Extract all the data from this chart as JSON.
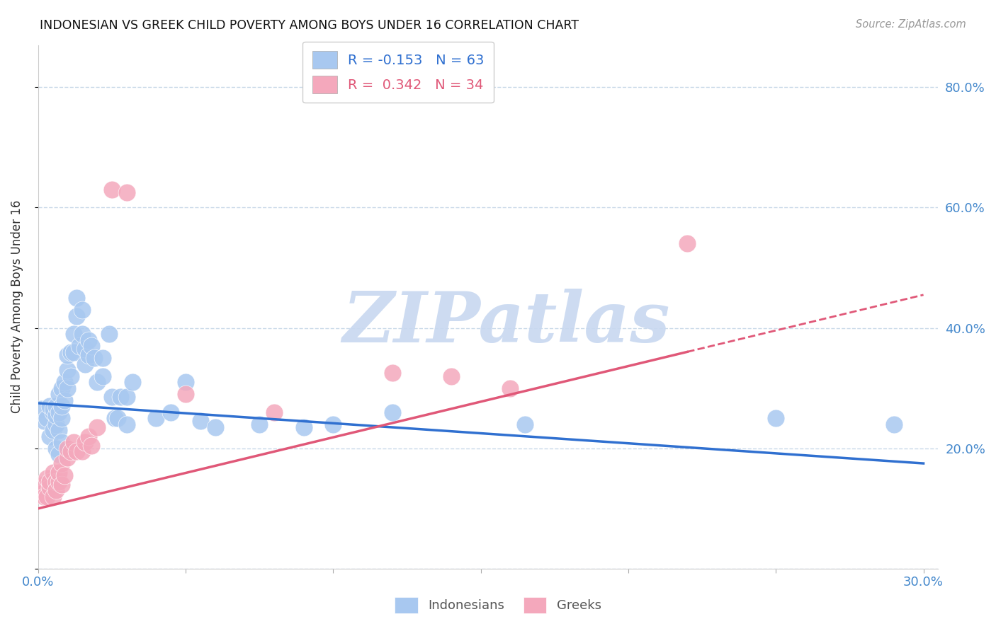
{
  "title": "INDONESIAN VS GREEK CHILD POVERTY AMONG BOYS UNDER 16 CORRELATION CHART",
  "source": "Source: ZipAtlas.com",
  "ylabel": "Child Poverty Among Boys Under 16",
  "indonesian_color": "#a8c8f0",
  "greek_color": "#f4a8bc",
  "indonesian_line_color": "#3070d0",
  "greek_line_color": "#e05878",
  "background_color": "#ffffff",
  "grid_color": "#c8d8e8",
  "watermark_text": "ZIPatlas",
  "watermark_color": "#c8d8f0",
  "xlim": [
    0.0,
    0.305
  ],
  "ylim": [
    0.0,
    0.87
  ],
  "x_ticks": [
    0.0,
    0.05,
    0.1,
    0.15,
    0.2,
    0.25,
    0.3
  ],
  "x_tick_labels": [
    "0.0%",
    "",
    "",
    "",
    "",
    "",
    "30.0%"
  ],
  "y_ticks": [
    0.0,
    0.2,
    0.4,
    0.6,
    0.8
  ],
  "y_tick_labels": [
    "",
    "20.0%",
    "40.0%",
    "60.0%",
    "80.0%"
  ],
  "legend1_text": "R = -0.153   N = 63",
  "legend2_text": "R =  0.342   N = 34",
  "legend1_color": "#3070d0",
  "legend2_color": "#e05878",
  "indo_x": [
    0.001,
    0.002,
    0.003,
    0.004,
    0.004,
    0.005,
    0.005,
    0.005,
    0.006,
    0.006,
    0.006,
    0.006,
    0.007,
    0.007,
    0.007,
    0.007,
    0.008,
    0.008,
    0.008,
    0.008,
    0.009,
    0.009,
    0.01,
    0.01,
    0.01,
    0.011,
    0.011,
    0.012,
    0.012,
    0.013,
    0.013,
    0.014,
    0.015,
    0.015,
    0.016,
    0.016,
    0.017,
    0.017,
    0.018,
    0.019,
    0.02,
    0.022,
    0.022,
    0.024,
    0.025,
    0.026,
    0.027,
    0.028,
    0.03,
    0.03,
    0.032,
    0.04,
    0.045,
    0.05,
    0.055,
    0.06,
    0.075,
    0.09,
    0.1,
    0.12,
    0.165,
    0.25,
    0.29
  ],
  "indo_y": [
    0.265,
    0.245,
    0.25,
    0.27,
    0.22,
    0.26,
    0.23,
    0.265,
    0.2,
    0.24,
    0.255,
    0.27,
    0.19,
    0.23,
    0.26,
    0.29,
    0.21,
    0.25,
    0.27,
    0.3,
    0.28,
    0.31,
    0.3,
    0.33,
    0.355,
    0.32,
    0.36,
    0.36,
    0.39,
    0.42,
    0.45,
    0.37,
    0.39,
    0.43,
    0.34,
    0.365,
    0.355,
    0.38,
    0.37,
    0.35,
    0.31,
    0.32,
    0.35,
    0.39,
    0.285,
    0.25,
    0.25,
    0.285,
    0.24,
    0.285,
    0.31,
    0.25,
    0.26,
    0.31,
    0.245,
    0.235,
    0.24,
    0.235,
    0.24,
    0.26,
    0.24,
    0.25,
    0.24
  ],
  "greek_x": [
    0.001,
    0.002,
    0.002,
    0.003,
    0.003,
    0.004,
    0.004,
    0.005,
    0.005,
    0.006,
    0.006,
    0.007,
    0.007,
    0.008,
    0.008,
    0.009,
    0.01,
    0.01,
    0.011,
    0.012,
    0.013,
    0.015,
    0.016,
    0.017,
    0.018,
    0.02,
    0.025,
    0.03,
    0.05,
    0.08,
    0.12,
    0.14,
    0.16,
    0.22
  ],
  "greek_y": [
    0.125,
    0.14,
    0.12,
    0.15,
    0.12,
    0.135,
    0.145,
    0.12,
    0.16,
    0.145,
    0.13,
    0.145,
    0.16,
    0.14,
    0.175,
    0.155,
    0.185,
    0.2,
    0.195,
    0.21,
    0.195,
    0.195,
    0.21,
    0.22,
    0.205,
    0.235,
    0.63,
    0.625,
    0.29,
    0.26,
    0.325,
    0.32,
    0.3,
    0.54
  ],
  "indo_line_x0": 0.0,
  "indo_line_y0": 0.275,
  "indo_line_x1": 0.3,
  "indo_line_y1": 0.175,
  "greek_line_x0": 0.0,
  "greek_line_y0": 0.1,
  "greek_line_x1": 0.3,
  "greek_line_y1": 0.455,
  "greek_line_solid_xmax": 0.22,
  "greek_line_dashed_xmin": 0.22,
  "greek_line_dashed_xmax": 0.3
}
